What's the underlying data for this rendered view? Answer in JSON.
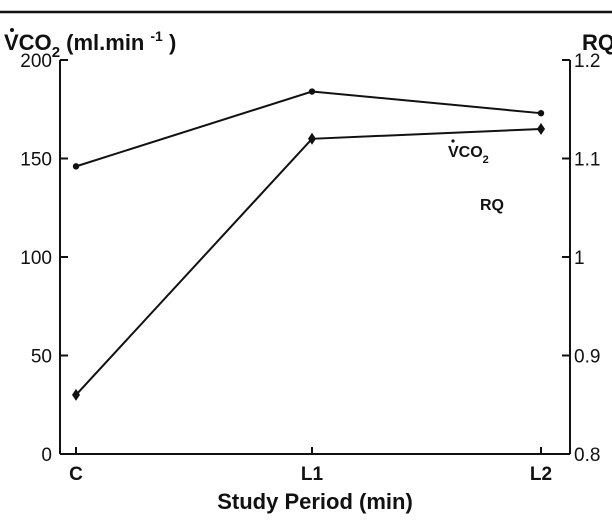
{
  "chart_data": {
    "type": "line",
    "categories": [
      "C",
      "L1",
      "L2"
    ],
    "xlabel": "Study Period (min)",
    "y_left": {
      "label_main": "VCO",
      "label_sub": "2",
      "label_unit": " (ml.min",
      "label_exp": "-1",
      "label_close": " )",
      "ylim": [
        0,
        200
      ],
      "ticks": [
        0,
        50,
        100,
        150,
        200
      ]
    },
    "y_right": {
      "label": "RQ",
      "ylim": [
        0.8,
        1.2
      ],
      "ticks": [
        0.8,
        0.9,
        1,
        1.1,
        1.2
      ],
      "tick_labels": [
        "0.8",
        "0.9",
        "1",
        "1.1",
        "1.2"
      ]
    },
    "series": [
      {
        "name": "VCO2",
        "label_main": "VCO",
        "label_sub": "2",
        "axis": "left",
        "values": [
          146,
          184,
          173
        ],
        "marker": "dot"
      },
      {
        "name": "RQ",
        "label_main": "RQ",
        "axis": "right",
        "values": [
          0.86,
          1.12,
          1.13
        ],
        "marker": "diamond"
      }
    ],
    "grid": false,
    "line_color": "#111111"
  }
}
